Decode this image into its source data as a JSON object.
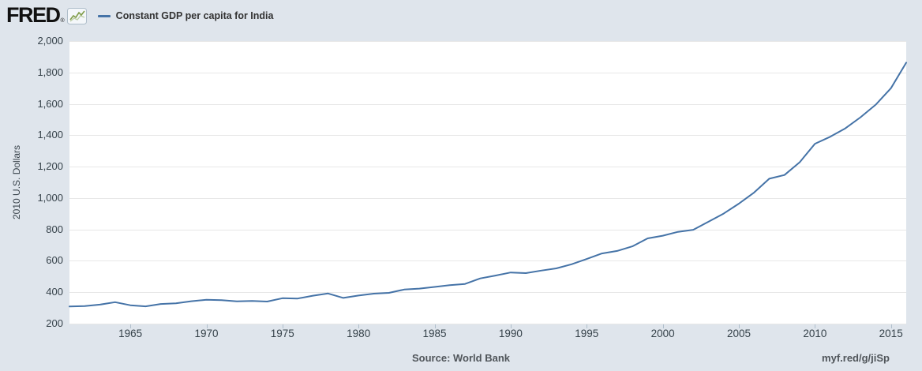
{
  "header": {
    "logo_text": "FRED",
    "registered_mark": "®",
    "legend": {
      "label": "Constant GDP per capita for India",
      "series_color": "#4573a7"
    }
  },
  "footer": {
    "source_label": "Source: World Bank",
    "short_url": "myf.red/g/jiSp"
  },
  "colors": {
    "background": "#dfe5ec",
    "plot_background": "#ffffff",
    "gridline": "#e7e7e7",
    "axis_line": "#c9d4e0",
    "series_line": "#4573a7",
    "tick_label": "#36424a",
    "footer_text": "#50555a",
    "icon_line_green": "#7f9c48"
  },
  "chart_data": {
    "type": "line",
    "title": "Constant GDP per capita for India",
    "xlabel": "",
    "ylabel": "2010 U.S. Dollars",
    "xlim": [
      1961,
      2016
    ],
    "ylim": [
      200,
      2000
    ],
    "grid": "horizontal",
    "legend_position": "top-left",
    "x_ticks": [
      1965,
      1970,
      1975,
      1980,
      1985,
      1990,
      1995,
      2000,
      2005,
      2010,
      2015
    ],
    "x_tick_labels": [
      "1965",
      "1970",
      "1975",
      "1980",
      "1985",
      "1990",
      "1995",
      "2000",
      "2005",
      "2010",
      "2015"
    ],
    "y_ticks": [
      200,
      400,
      600,
      800,
      1000,
      1200,
      1400,
      1600,
      1800,
      2000
    ],
    "y_tick_labels": [
      "200",
      "400",
      "600",
      "800",
      "1,000",
      "1,200",
      "1,400",
      "1,600",
      "1,800",
      "2,000"
    ],
    "x": [
      1961,
      1962,
      1963,
      1964,
      1965,
      1966,
      1967,
      1968,
      1969,
      1970,
      1971,
      1972,
      1973,
      1974,
      1975,
      1976,
      1977,
      1978,
      1979,
      1980,
      1981,
      1982,
      1983,
      1984,
      1985,
      1986,
      1987,
      1988,
      1989,
      1990,
      1991,
      1992,
      1993,
      1994,
      1995,
      1996,
      1997,
      1998,
      1999,
      2000,
      2001,
      2002,
      2003,
      2004,
      2005,
      2006,
      2007,
      2008,
      2009,
      2010,
      2011,
      2012,
      2013,
      2014,
      2015,
      2016
    ],
    "series": [
      {
        "name": "Constant GDP per capita for India",
        "color": "#4573a7",
        "values": [
          309,
          312,
          321,
          337,
          317,
          310,
          325,
          329,
          343,
          352,
          350,
          342,
          345,
          341,
          362,
          360,
          378,
          392,
          364,
          379,
          391,
          396,
          417,
          423,
          434,
          445,
          453,
          488,
          506,
          526,
          522,
          538,
          552,
          578,
          612,
          647,
          663,
          692,
          743,
          760,
          785,
          798,
          849,
          901,
          964,
          1035,
          1123,
          1147,
          1228,
          1346,
          1390,
          1444,
          1515,
          1595,
          1700,
          1862
        ]
      }
    ]
  }
}
